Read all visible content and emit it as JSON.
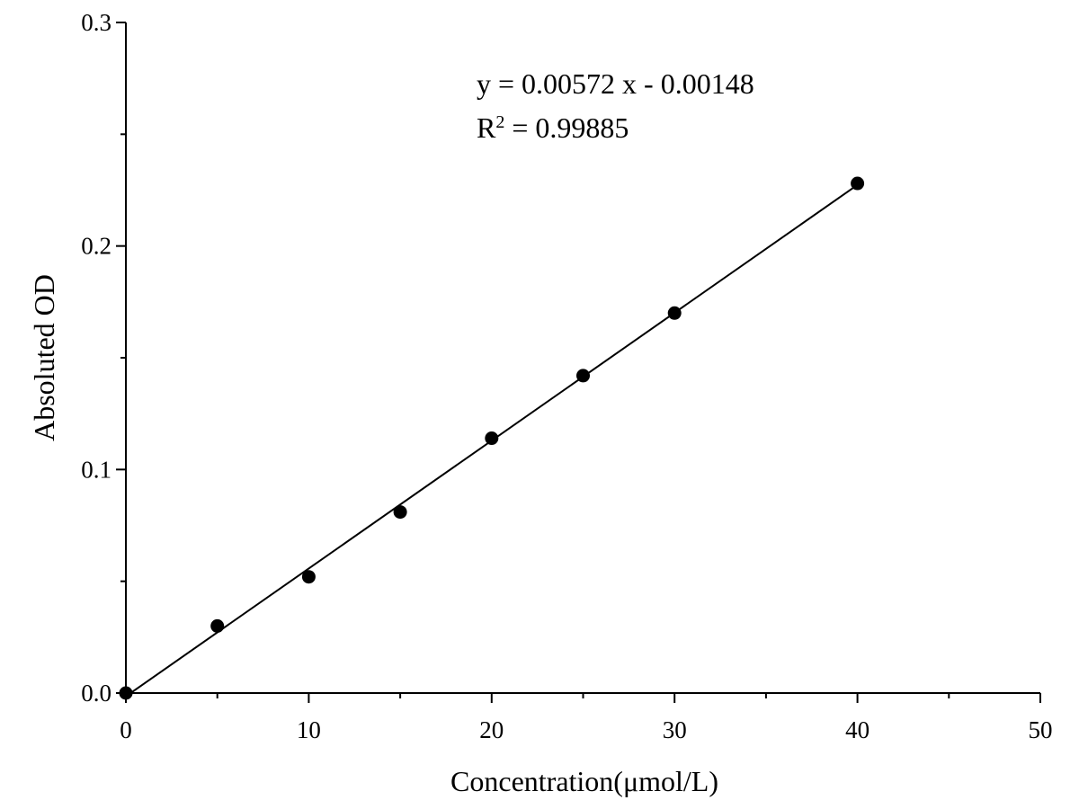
{
  "chart_data": {
    "type": "scatter",
    "xlabel": "Concentration(μmol/L)",
    "ylabel": "Absoluted OD",
    "xlim": [
      0,
      50
    ],
    "ylim": [
      0,
      0.3
    ],
    "x_ticks": [
      "0",
      "10",
      "20",
      "30",
      "40",
      "50"
    ],
    "y_ticks": [
      "0.0",
      "0.1",
      "0.2",
      "0.3"
    ],
    "grid": false,
    "series": [
      {
        "points": [
          {
            "x": 0,
            "y": 0.0
          },
          {
            "x": 5,
            "y": 0.03
          },
          {
            "x": 10,
            "y": 0.052
          },
          {
            "x": 15,
            "y": 0.081
          },
          {
            "x": 20,
            "y": 0.114
          },
          {
            "x": 25,
            "y": 0.142
          },
          {
            "x": 30,
            "y": 0.17
          },
          {
            "x": 40,
            "y": 0.228
          }
        ]
      }
    ],
    "fit": {
      "slope": 0.00572,
      "intercept": -0.00148,
      "x_range": [
        0,
        40
      ],
      "equation_text": "y = 0.00572 x - 0.00148",
      "r2_prefix": "R",
      "r2_sup": "2",
      "r2_value": " = 0.99885"
    },
    "colors": {
      "marks": "#000000",
      "background": "#ffffff"
    }
  }
}
